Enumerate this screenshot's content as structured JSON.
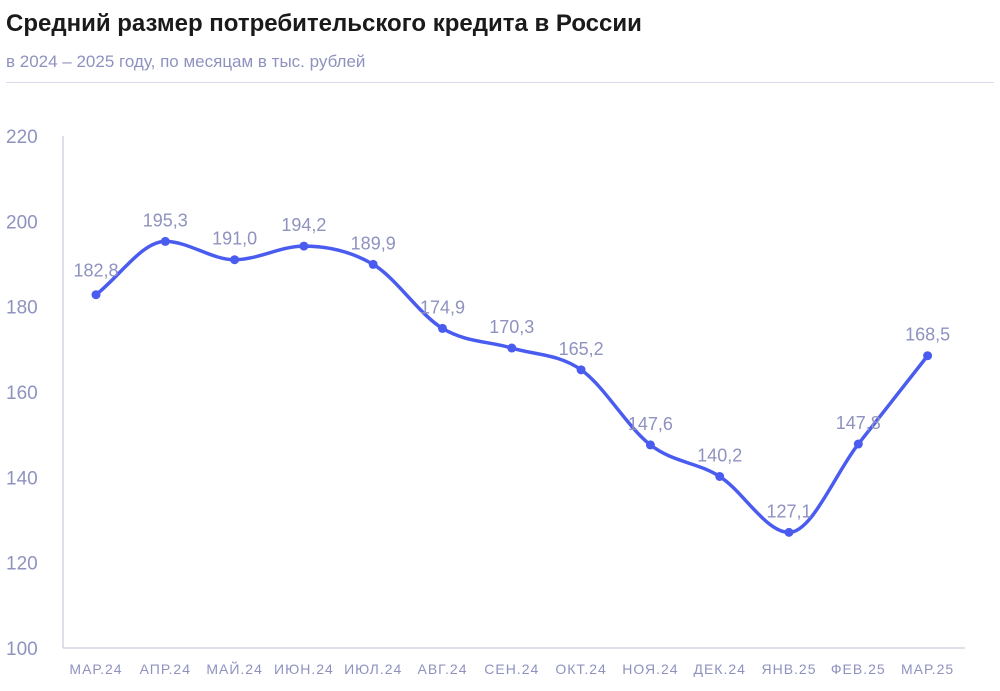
{
  "header": {
    "title": "Средний размер потребительского кредита в России",
    "subtitle": "в 2024 – 2025 году, по месяцам в тыс. рублей"
  },
  "colors": {
    "line": "#4a5cef",
    "text_muted": "#8f92bf",
    "axis": "#c9cae3",
    "title": "#1a1a1a"
  },
  "chart_data": {
    "type": "line",
    "title": "Средний размер потребительского кредита в России",
    "subtitle": "в 2024 – 2025 году, по месяцам в тыс. рублей",
    "categories": [
      "МАР.24",
      "АПР.24",
      "МАЙ.24",
      "ИЮН.24",
      "ИЮЛ.24",
      "АВГ.24",
      "СЕН.24",
      "ОКТ.24",
      "НОЯ.24",
      "ДЕК.24",
      "ЯНВ.25",
      "ФЕВ.25",
      "МАР.25"
    ],
    "values": [
      182.8,
      195.3,
      191.0,
      194.2,
      189.9,
      174.9,
      170.3,
      165.2,
      147.6,
      140.2,
      127.1,
      147.8,
      168.5
    ],
    "data_labels": [
      "182,8",
      "195,3",
      "191,0",
      "194,2",
      "189,9",
      "174,9",
      "170,3",
      "165,2",
      "147,6",
      "140,2",
      "127,1",
      "147,8",
      "168,5"
    ],
    "yticks": [
      "100",
      "120",
      "140",
      "160",
      "180",
      "200",
      "220"
    ],
    "ylim": [
      100,
      220
    ],
    "xlabel": "",
    "ylabel": "",
    "grid": false,
    "legend": "none",
    "smooth": true
  }
}
